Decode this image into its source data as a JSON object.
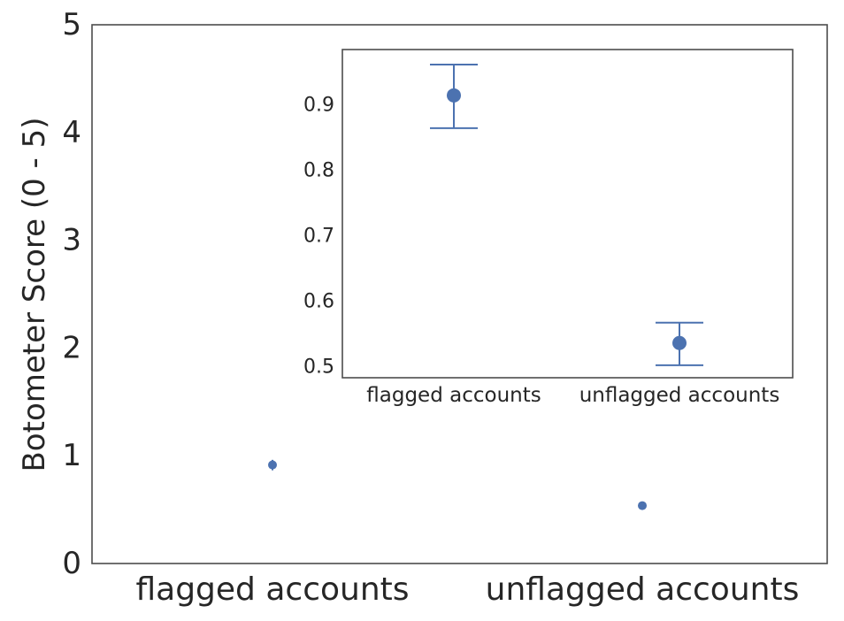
{
  "chart_data": [
    {
      "type": "scatter",
      "role": "main",
      "categories": [
        "flagged accounts",
        "unflagged accounts"
      ],
      "values": [
        0.915,
        0.537
      ],
      "error_low": [
        0.865,
        0.503
      ],
      "error_high": [
        0.962,
        0.568
      ],
      "title": "",
      "xlabel": "",
      "ylabel": "Botometer Score (0 - 5)",
      "ylim": [
        0,
        5
      ],
      "yticks": [
        "0",
        "1",
        "2",
        "3",
        "4",
        "5"
      ],
      "grid": false,
      "color": "#4c72b0"
    },
    {
      "type": "scatter",
      "role": "inset",
      "categories": [
        "flagged accounts",
        "unflagged accounts"
      ],
      "values": [
        0.915,
        0.537
      ],
      "error_low": [
        0.865,
        0.503
      ],
      "error_high": [
        0.962,
        0.568
      ],
      "title": "",
      "xlabel": "",
      "ylabel": "",
      "ylim": [
        0.484,
        0.985
      ],
      "yticks": [
        "0.5",
        "0.6",
        "0.7",
        "0.8",
        "0.9"
      ],
      "grid": false,
      "placement": "top-right",
      "color": "#4c72b0"
    }
  ]
}
